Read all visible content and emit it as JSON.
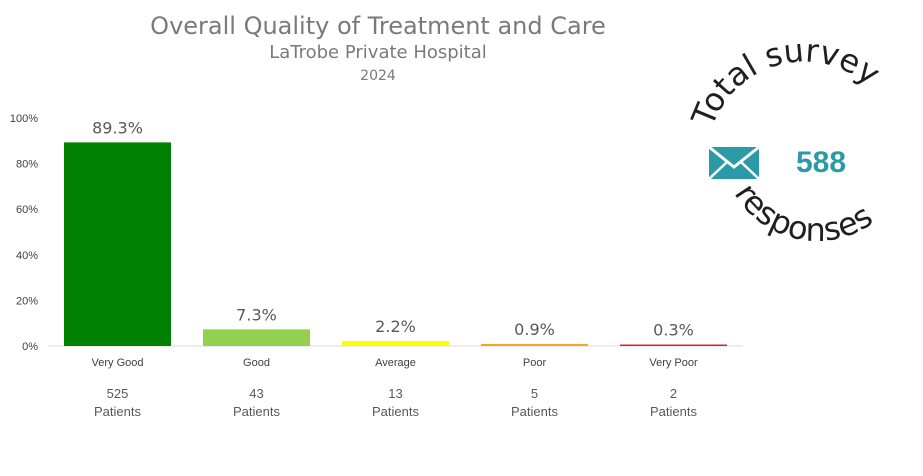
{
  "chart_data": {
    "type": "bar",
    "title": "Overall Quality of Treatment and Care",
    "subtitle": "LaTrobe Private Hospital",
    "year": "2024",
    "categories": [
      "Very Good",
      "Good",
      "Average",
      "Poor",
      "Very Poor"
    ],
    "values": [
      89.3,
      7.3,
      2.2,
      0.9,
      0.3
    ],
    "value_labels": [
      "89.3%",
      "7.3%",
      "2.2%",
      "0.9%",
      "0.3%"
    ],
    "patient_counts": [
      "525",
      "43",
      "13",
      "5",
      "2"
    ],
    "patients_label": "Patients",
    "colors": [
      "#008000",
      "#92d050",
      "#ffff00",
      "#f5a623",
      "#e02020"
    ],
    "ylim": [
      0,
      100
    ],
    "yticks": [
      0,
      20,
      40,
      60,
      80,
      100
    ],
    "ytick_labels": [
      "0%",
      "20%",
      "40%",
      "60%",
      "80%",
      "100%"
    ],
    "grid": false
  },
  "badge": {
    "top_text": "Total survey",
    "bottom_text": "responses",
    "count": "588",
    "icon": "envelope-icon",
    "icon_color": "#2a9aa6"
  }
}
